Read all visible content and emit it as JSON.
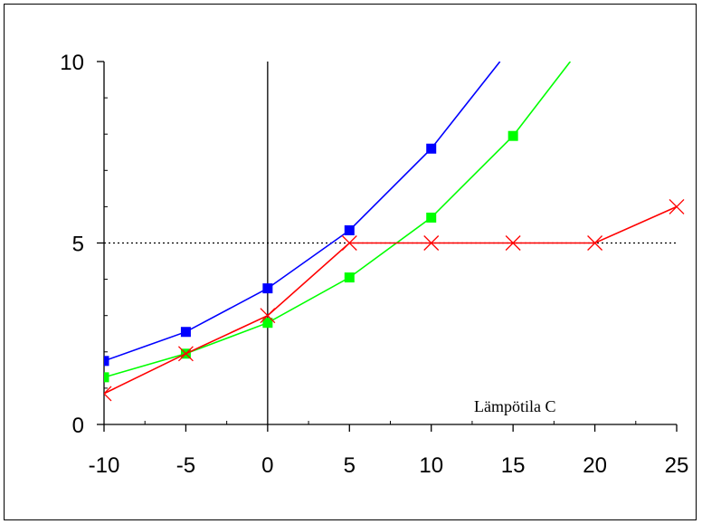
{
  "chart_data": {
    "type": "line",
    "xlabel": "Lämpötila C",
    "ylabel": "",
    "title": "",
    "xlim": [
      -10,
      25
    ],
    "ylim": [
      0,
      10
    ],
    "x_ticks": [
      "-10",
      "-5",
      "0",
      "5",
      "10",
      "15",
      "20",
      "25"
    ],
    "y_ticks": [
      "0",
      "5",
      "10"
    ],
    "reference_line": {
      "y": 5,
      "style": "dotted"
    },
    "grid": false,
    "series": [
      {
        "color": "#0000ff",
        "marker": "square",
        "points": [
          [
            -10,
            1.75
          ],
          [
            -5,
            2.55
          ],
          [
            0,
            3.75
          ],
          [
            5,
            5.35
          ],
          [
            10,
            7.6
          ],
          [
            14.2,
            10.0
          ]
        ]
      },
      {
        "color": "#00ff00",
        "marker": "square",
        "points": [
          [
            -10,
            1.3
          ],
          [
            -5,
            1.95
          ],
          [
            0,
            2.8
          ],
          [
            5,
            4.05
          ],
          [
            10,
            5.7
          ],
          [
            15,
            7.95
          ],
          [
            18.5,
            10.0
          ]
        ]
      },
      {
        "color": "#ff0000",
        "marker": "cross",
        "points": [
          [
            -10,
            0.85
          ],
          [
            -5,
            1.95
          ],
          [
            0,
            3.0
          ],
          [
            5,
            5.0
          ],
          [
            10,
            5.0
          ],
          [
            15,
            5.0
          ],
          [
            20,
            5.0
          ],
          [
            25,
            6.0
          ]
        ]
      }
    ]
  }
}
